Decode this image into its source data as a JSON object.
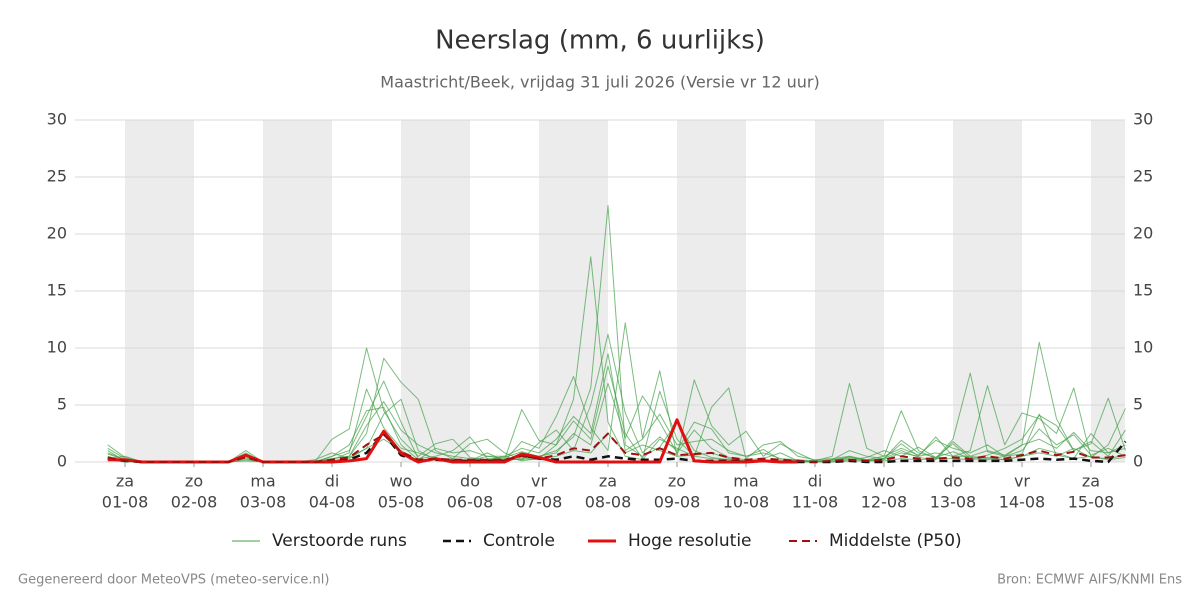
{
  "chart_data": {
    "type": "line",
    "title": "Neerslag (mm, 6 uurlijks)",
    "subtitle": "Maastricht/Beek, vrijdag 31 juli 2026 (Versie vr 12 uur)",
    "footer_left": "Gegenereerd door MeteoVPS (meteo-service.nl)",
    "footer_right": "Bron: ECMWF AIFS/KNMI Ens",
    "grid": true,
    "ylim": [
      0,
      30
    ],
    "yticks": [
      0,
      5,
      10,
      15,
      20,
      25,
      30
    ],
    "xlim": [
      -0.725,
      14.493
    ],
    "xticks": [
      {
        "value": 0,
        "label": "01-08"
      },
      {
        "value": 1,
        "label": "02-08"
      },
      {
        "value": 2,
        "label": "03-08"
      },
      {
        "value": 3,
        "label": "04-08"
      },
      {
        "value": 4,
        "label": "05-08"
      },
      {
        "value": 5,
        "label": "06-08"
      },
      {
        "value": 6,
        "label": "07-08"
      },
      {
        "value": 7,
        "label": "08-08"
      },
      {
        "value": 8,
        "label": "09-08"
      },
      {
        "value": 9,
        "label": "10-08"
      },
      {
        "value": 10,
        "label": "11-08"
      },
      {
        "value": 11,
        "label": "12-08"
      },
      {
        "value": 12,
        "label": "13-08"
      },
      {
        "value": 13,
        "label": "14-08"
      },
      {
        "value": 14,
        "label": "15-08"
      }
    ],
    "xtick_weekdays": [
      "za",
      "zo",
      "ma",
      "di",
      "wo",
      "do",
      "vr",
      "za",
      "zo",
      "ma",
      "di",
      "wo",
      "do",
      "vr",
      "za"
    ],
    "x": [
      -0.25,
      0,
      0.25,
      0.5,
      0.75,
      1,
      1.25,
      1.5,
      1.75,
      2,
      2.25,
      2.5,
      2.75,
      3,
      3.25,
      3.5,
      3.75,
      4,
      4.25,
      4.5,
      4.75,
      5,
      5.25,
      5.5,
      5.75,
      6,
      6.25,
      6.5,
      6.75,
      7,
      7.25,
      7.5,
      7.75,
      8,
      8.25,
      8.5,
      8.75,
      9,
      9.25,
      9.5,
      9.75,
      10,
      10.25,
      10.5,
      10.75,
      11,
      11.25,
      11.5,
      11.75,
      12,
      12.25,
      12.5,
      12.75,
      13,
      13.25,
      13.5,
      13.75,
      14,
      14.25,
      14.5
    ],
    "ensemble": {
      "name": "Verstoorde runs",
      "color": "#43a047",
      "runs": [
        [
          1.2,
          0.3,
          0,
          0,
          0,
          0,
          0,
          0,
          0.5,
          0,
          0,
          0,
          0.2,
          0.8,
          0.3,
          1.2,
          4.2,
          5.5,
          1.0,
          0.2,
          0.3,
          0.1,
          0.2,
          0.5,
          0.1,
          0.3,
          1.5,
          5.5,
          18,
          3.5,
          0.5,
          0.2,
          2.0,
          1.2,
          0.5,
          0.3,
          0.2,
          0.1,
          0,
          0,
          0,
          0,
          0,
          0.5,
          0.2,
          0.3,
          1.0,
          0.4,
          0.2,
          1.8,
          0.5,
          0.3,
          0.2,
          0.5,
          1.2,
          0.8,
          0.3,
          0.5,
          0.2,
          0.4
        ],
        [
          0.8,
          0.2,
          0,
          0,
          0,
          0,
          0,
          0.1,
          0.3,
          0,
          0,
          0,
          0.1,
          0.3,
          0.5,
          2.5,
          9.1,
          7.0,
          5.5,
          1.0,
          0.3,
          1.6,
          2.0,
          0.8,
          0.2,
          0.5,
          1.0,
          2.2,
          6.5,
          22.5,
          1.5,
          0.5,
          1.3,
          3.5,
          1.0,
          0.4,
          0.2,
          0.1,
          0,
          0,
          0.2,
          0,
          0.2,
          1.0,
          0.5,
          0.3,
          1.9,
          0.8,
          0.4,
          0.9,
          0.3,
          0.2,
          0.5,
          0.7,
          4.2,
          0.6,
          0.3,
          2.5,
          0.8,
          1.2
        ],
        [
          1.5,
          0.4,
          0,
          0,
          0,
          0,
          0,
          0,
          0.6,
          0,
          0,
          0,
          0,
          2.0,
          2.9,
          10.0,
          4.5,
          2.0,
          0.5,
          1.6,
          2.0,
          0.4,
          0.2,
          0.1,
          1.8,
          1.2,
          4.0,
          7.5,
          3.0,
          1.0,
          12.2,
          2.1,
          8.0,
          0.5,
          7.2,
          3.2,
          1.5,
          2.7,
          0.5,
          1.6,
          0.8,
          0.1,
          0.5,
          6.9,
          1.2,
          0.5,
          4.5,
          1.0,
          0.3,
          2.0,
          7.8,
          0.9,
          0.5,
          1.5,
          10.5,
          3.8,
          1.0,
          1.6,
          5.6,
          1.0
        ],
        [
          0.5,
          0.1,
          0,
          0,
          0,
          0,
          0,
          0,
          0.8,
          0,
          0,
          0,
          0,
          0.5,
          1.0,
          4.0,
          7.1,
          3.5,
          0.3,
          0.5,
          1.0,
          2.2,
          0.3,
          0.2,
          4.6,
          1.9,
          1.5,
          3.6,
          2.0,
          8.4,
          2.5,
          0.3,
          6.2,
          2.0,
          0.5,
          4.8,
          6.5,
          0.3,
          1.5,
          1.8,
          0.5,
          0.2,
          0.3,
          0.5,
          0.1,
          0.3,
          1.6,
          0.5,
          2.2,
          0.5,
          1.0,
          6.7,
          1.5,
          4.3,
          3.8,
          2.5,
          6.5,
          0.4,
          1.5,
          4.7
        ],
        [
          0.3,
          0.5,
          0,
          0,
          0,
          0,
          0,
          0,
          0.2,
          0,
          0,
          0,
          0,
          0.2,
          0.8,
          6.4,
          3.0,
          1.2,
          0.8,
          0.3,
          0.1,
          0.1,
          0.5,
          0.3,
          0.2,
          1.7,
          2.8,
          1.0,
          5.0,
          11.2,
          4.3,
          0.8,
          2.2,
          1.0,
          3.5,
          2.9,
          0.8,
          0.5,
          1.1,
          0.2,
          0.1,
          0,
          0.1,
          0.2,
          0.4,
          1.0,
          0.5,
          1.3,
          0.4,
          1.6,
          0.3,
          0.6,
          1.2,
          2.0,
          4.1,
          3.2,
          1.0,
          1.8,
          0.5,
          2.8
        ],
        [
          0.7,
          0.2,
          0,
          0,
          0,
          0,
          0,
          0,
          0.4,
          0,
          0,
          0,
          0,
          0.3,
          0.5,
          3.2,
          5.3,
          2.8,
          1.5,
          0.8,
          0.5,
          0.3,
          0.2,
          0.4,
          0.9,
          0.5,
          0.8,
          2.5,
          1.5,
          6.9,
          2.1,
          5.8,
          3.5,
          0.8,
          2.8,
          1.2,
          0.4,
          0.2,
          0.3,
          0.8,
          0.1,
          0,
          0.2,
          0.4,
          0.2,
          0.5,
          1.2,
          0.6,
          1.9,
          1.2,
          0.8,
          1.5,
          0.5,
          1.0,
          2.9,
          1.5,
          2.4,
          0.6,
          1.2,
          0.5
        ],
        [
          1.0,
          0.1,
          0,
          0,
          0,
          0,
          0,
          0,
          1.0,
          0,
          0,
          0,
          0,
          0.5,
          1.5,
          4.5,
          4.8,
          1.5,
          0.2,
          1.2,
          0.8,
          1.0,
          0.5,
          0.5,
          1.2,
          0.8,
          2.0,
          4.0,
          2.5,
          9.5,
          1.0,
          2.0,
          4.2,
          1.5,
          1.8,
          2.0,
          1.0,
          0.5,
          0.8,
          0.3,
          0.2,
          0.1,
          0.2,
          0.3,
          0.1,
          0.2,
          0.8,
          0.5,
          0.8,
          0.5,
          0.5,
          1.0,
          0.6,
          1.5,
          2.0,
          1.2,
          2.6,
          1.0,
          0.8,
          1.5
        ],
        [
          0.2,
          0,
          0,
          0,
          0,
          0,
          0,
          0,
          0.1,
          0,
          0,
          0,
          0,
          0.1,
          0.4,
          1.2,
          2.0,
          1.0,
          0.1,
          0.2,
          0.2,
          0.1,
          0.8,
          0.1,
          0.3,
          0.2,
          0.5,
          1.0,
          0.8,
          2.5,
          0.8,
          1.5,
          1.0,
          0.5,
          0.6,
          0.8,
          0.3,
          0.1,
          0.2,
          0.1,
          0,
          0,
          0,
          0.1,
          0.1,
          0.1,
          0.3,
          0.2,
          0.3,
          0.3,
          0.2,
          0.4,
          0.2,
          0.5,
          0.8,
          0.5,
          1.2,
          0.4,
          0.3,
          0.6
        ]
      ]
    },
    "series": [
      {
        "name": "Controle",
        "color": "#111111",
        "dash": true,
        "width": 2.5,
        "values": [
          0.3,
          0.1,
          0,
          0,
          0,
          0,
          0,
          0,
          0.5,
          0,
          0,
          0,
          0,
          0.1,
          0.2,
          0.8,
          2.5,
          0.6,
          0.1,
          0.2,
          0.1,
          0.1,
          0.1,
          0.1,
          0.6,
          0.3,
          0.2,
          0.5,
          0.2,
          0.5,
          0.3,
          0.2,
          0.2,
          0.3,
          0.1,
          0.1,
          0.1,
          0.1,
          0.1,
          0.1,
          0,
          0,
          0,
          0.1,
          0,
          0,
          0.1,
          0.1,
          0.1,
          0.1,
          0.1,
          0.1,
          0.1,
          0.2,
          0.3,
          0.2,
          0.3,
          0.1,
          0,
          1.8
        ]
      },
      {
        "name": "Hoge resolutie",
        "color": "#e01010",
        "dash": false,
        "width": 3,
        "values": [
          0.2,
          0.2,
          0,
          0,
          0,
          0,
          0,
          0,
          0.6,
          0,
          0,
          0,
          0,
          0,
          0.1,
          0.3,
          2.7,
          0.8,
          0,
          0.3,
          0,
          0,
          0,
          0,
          0.7,
          0.4,
          0,
          0,
          0,
          0,
          0,
          0,
          0,
          3.7,
          0.1,
          0,
          0,
          0,
          0.1,
          0,
          0,
          null,
          null,
          null,
          null,
          null,
          null,
          null,
          null,
          null,
          null,
          null,
          null,
          null,
          null,
          null,
          null,
          null,
          null,
          null
        ]
      },
      {
        "name": "Middelste (P50)",
        "color": "#a01010",
        "dash": true,
        "width": 2,
        "values": [
          0.4,
          0.1,
          0,
          0,
          0,
          0,
          0,
          0,
          0.4,
          0,
          0,
          0,
          0,
          0.2,
          0.4,
          1.5,
          2.4,
          0.9,
          0.2,
          0.3,
          0.2,
          0.2,
          0.2,
          0.2,
          0.5,
          0.3,
          0.6,
          1.2,
          1.0,
          2.5,
          0.8,
          0.6,
          1.2,
          0.6,
          0.7,
          0.8,
          0.4,
          0.2,
          0.3,
          0.2,
          0.1,
          0,
          0.1,
          0.2,
          0.1,
          0.2,
          0.5,
          0.3,
          0.3,
          0.4,
          0.3,
          0.5,
          0.3,
          0.6,
          1.0,
          0.6,
          0.9,
          0.4,
          0.4,
          0.6
        ]
      }
    ]
  }
}
